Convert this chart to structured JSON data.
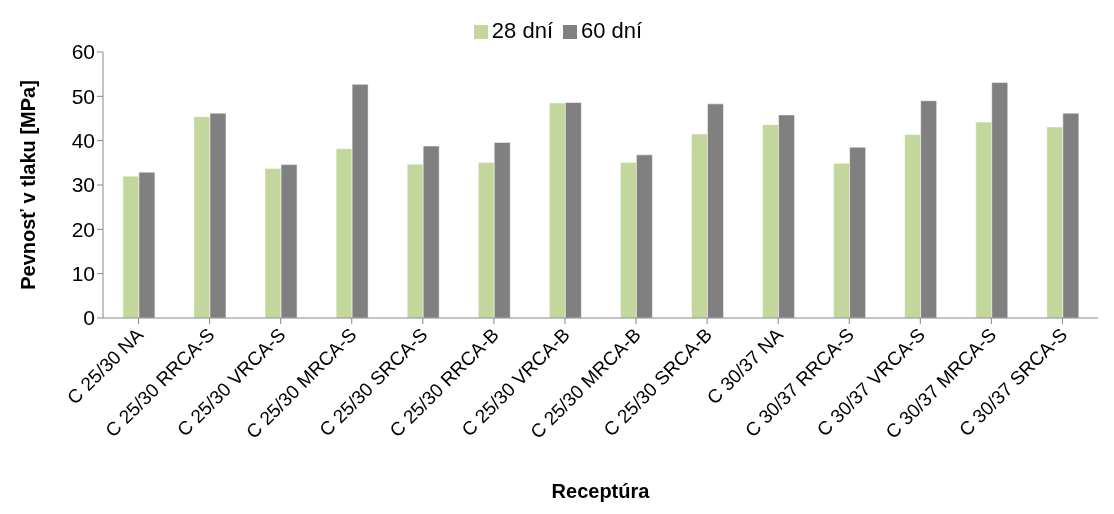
{
  "chart_data": {
    "type": "bar",
    "xlabel": "Receptúra",
    "ylabel": "Pevnosť v tlaku [MPa]",
    "categories": [
      "C 25/30 NA",
      "C 25/30 RRCA-S",
      "C 25/30 VRCA-S",
      "C 25/30 MRCA-S",
      "C 25/30 SRCA-S",
      "C 25/30 RRCA-B",
      "C 25/30 VRCA-B",
      "C 25/30 MRCA-B",
      "C 25/30 SRCA-B",
      "C 30/37 NA",
      "C 30/37 RRCA-S",
      "C 30/37 VRCA-S",
      "C 30/37 MRCA-S",
      "C 30/37 SRCA-S"
    ],
    "series": [
      {
        "name": "28 dní",
        "color": "#c3d69b",
        "values": [
          32.0,
          45.4,
          33.7,
          38.2,
          34.7,
          35.1,
          48.5,
          35.1,
          41.5,
          43.6,
          34.9,
          41.4,
          44.2,
          43.1
        ]
      },
      {
        "name": "60 dní",
        "color": "#808080",
        "values": [
          32.9,
          46.2,
          34.6,
          52.7,
          38.8,
          39.6,
          48.6,
          36.8,
          48.3,
          45.8,
          38.5,
          49.0,
          53.1,
          46.2
        ]
      }
    ],
    "ylim": [
      0,
      60
    ],
    "yticks": [
      0,
      10,
      20,
      30,
      40,
      50,
      60
    ],
    "grid": false,
    "legend": "top"
  }
}
